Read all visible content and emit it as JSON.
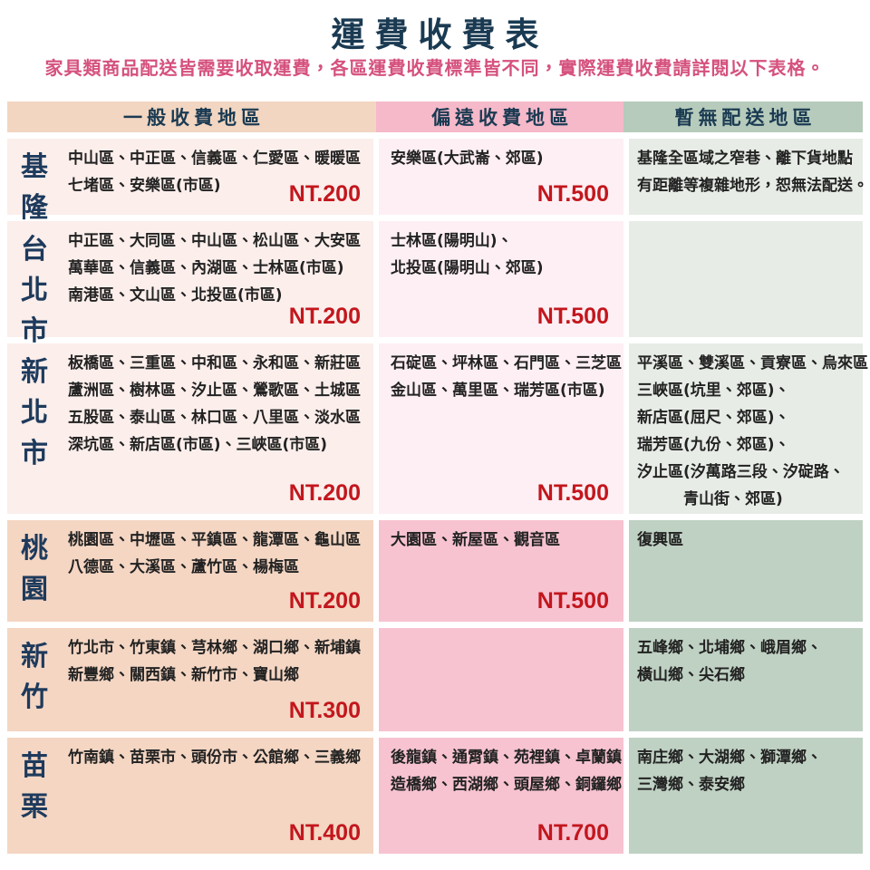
{
  "title": "運費收費表",
  "subtitle": "家具類商品配送皆需要收取運費，各區運費收費標準皆不同，實際運費收費請詳閱以下表格。",
  "colors": {
    "title_navy": "#1a3a52",
    "subtitle_pink": "#d5517e",
    "price_red": "#c3161d",
    "header_peach": "#f2d6c1",
    "header_pink": "#f5b9c9",
    "header_green": "#b6cbbb",
    "light_peach": "#fbeeeb",
    "light_pink": "#fdeff3",
    "light_green": "#e7ece6",
    "dark_peach": "#f4d6c3",
    "dark_pink": "#f7c3d1",
    "dark_green": "#bfd1c3"
  },
  "table": {
    "headers": {
      "general": "一般收費地區",
      "remote": "偏遠收費地區",
      "no_delivery": "暫無配送地區"
    },
    "rows": [
      {
        "region": "基隆",
        "general": {
          "areas": [
            "中山區、中正區、信義區、仁愛區、暖暖區",
            "七堵區、安樂區(市區)"
          ],
          "price": "NT.200"
        },
        "remote": {
          "areas": [
            "安樂區(大武崙、郊區)"
          ],
          "price": "NT.500"
        },
        "no_delivery": {
          "areas": [
            "基隆全區域之窄巷、離下貨地點",
            "有距離等複雜地形，恕無法配送。"
          ]
        }
      },
      {
        "region": "台北市",
        "general": {
          "areas": [
            "中正區、大同區、中山區、松山區、大安區",
            "萬華區、信義區、內湖區、士林區(市區)",
            "南港區、文山區、北投區(市區)"
          ],
          "price": "NT.200"
        },
        "remote": {
          "areas": [
            "士林區(陽明山)、",
            "北投區(陽明山、郊區)"
          ],
          "price": "NT.500"
        },
        "no_delivery": {
          "areas": []
        }
      },
      {
        "region": "新北市",
        "general": {
          "areas": [
            "板橋區、三重區、中和區、永和區、新莊區",
            "蘆洲區、樹林區、汐止區、鶯歌區、土城區",
            "五股區、泰山區、林口區、八里區、淡水區",
            "深坑區、新店區(市區)、三峽區(市區)"
          ],
          "price": "NT.200"
        },
        "remote": {
          "areas": [
            "石碇區、坪林區、石門區、三芝區",
            "金山區、萬里區、瑞芳區(市區)"
          ],
          "price": "NT.500"
        },
        "no_delivery": {
          "areas": [
            "平溪區、雙溪區、貢寮區、烏來區",
            "三峽區(坑里、郊區)、",
            "新店區(屈尺、郊區)、",
            "瑞芳區(九份、郊區)、",
            "汐止區(汐萬路三段、汐碇路、",
            "　　　青山街、郊區)"
          ]
        }
      },
      {
        "region": "桃園",
        "general": {
          "areas": [
            "桃園區、中壢區、平鎮區、龍潭區、龜山區",
            "八德區、大溪區、蘆竹區、楊梅區"
          ],
          "price": "NT.200"
        },
        "remote": {
          "areas": [
            "大園區、新屋區、觀音區"
          ],
          "price": "NT.500"
        },
        "no_delivery": {
          "areas": [
            "復興區"
          ]
        }
      },
      {
        "region": "新竹",
        "general": {
          "areas": [
            "竹北市、竹東鎮、芎林鄉、湖口鄉、新埔鎮",
            "新豐鄉、關西鎮、新竹市、寶山鄉"
          ],
          "price": "NT.300"
        },
        "remote": {
          "areas": []
        },
        "no_delivery": {
          "areas": [
            "五峰鄉、北埔鄉、峨眉鄉、",
            "橫山鄉、尖石鄉"
          ]
        }
      },
      {
        "region": "苗栗",
        "general": {
          "areas": [
            "竹南鎮、苗栗市、頭份市、公館鄉、三義鄉"
          ],
          "price": "NT.400"
        },
        "remote": {
          "areas": [
            "後龍鎮、通霄鎮、苑裡鎮、卓蘭鎮",
            "造橋鄉、西湖鄉、頭屋鄉、銅鑼鄉"
          ],
          "price": "NT.700"
        },
        "no_delivery": {
          "areas": [
            "南庄鄉、大湖鄉、獅潭鄉、",
            "三灣鄉、泰安鄉"
          ]
        }
      }
    ]
  }
}
